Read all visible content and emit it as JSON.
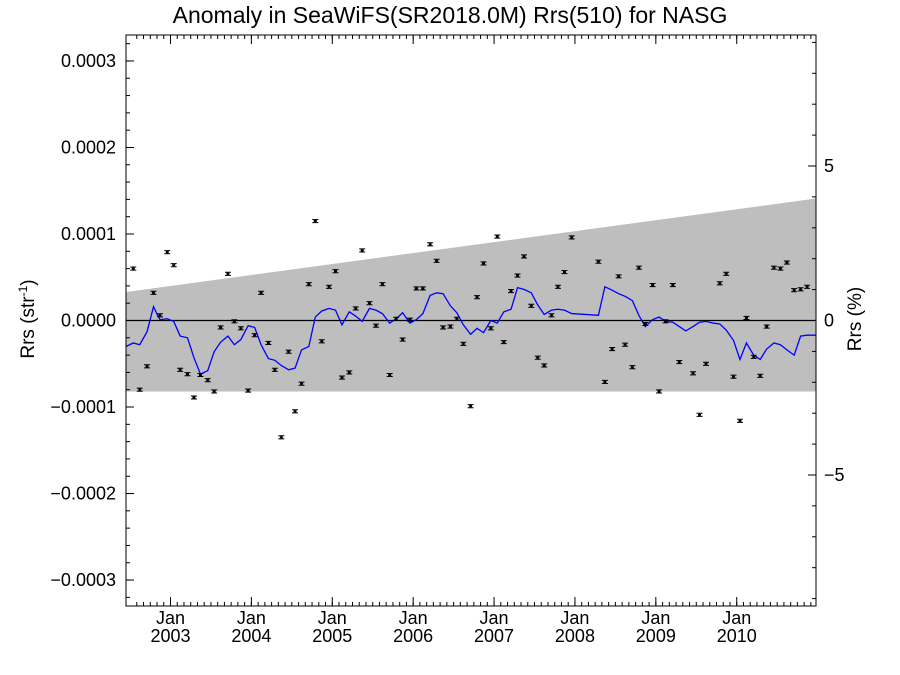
{
  "chart_data": {
    "type": "line",
    "title": "Anomaly in SeaWiFS(SR2018.0M) Rrs(510) for NASG",
    "ylabel": "Rrs (str",
    "ylabel_sup": "-1",
    "ylabel_close": ")",
    "y2label": "Rrs (%)",
    "ylim": [
      -0.00033,
      0.00033
    ],
    "y2lim": [
      -9.24,
      9.24
    ],
    "xlim": [
      2002.45,
      2010.98
    ],
    "yticks": [
      -0.0003,
      -0.0002,
      -0.0001,
      0.0,
      0.0001,
      0.0002,
      0.0003
    ],
    "ytick_labels": [
      "−0.0003",
      "−0.0002",
      "−0.0001",
      "0.0000",
      "0.0001",
      "0.0002",
      "0.0003"
    ],
    "y2ticks": [
      -5,
      0,
      5
    ],
    "y2tick_labels": [
      "−5",
      "0",
      "5"
    ],
    "xticks": [
      2003.0,
      2004.0,
      2005.0,
      2006.0,
      2007.0,
      2008.0,
      2009.0,
      2010.0
    ],
    "xtick_labels_top": [
      "Jan",
      "Jan",
      "Jan",
      "Jan",
      "Jan",
      "Jan",
      "Jan",
      "Jan"
    ],
    "xtick_labels_bottom": [
      "2003",
      "2004",
      "2005",
      "2006",
      "2007",
      "2008",
      "2009",
      "2010"
    ],
    "band": {
      "x": [
        2002.45,
        2010.98
      ],
      "upper": [
        3.3e-05,
        0.000141
      ],
      "lower": [
        -8.2e-05,
        -8.2e-05
      ],
      "color": "#bebebe"
    },
    "zero_line": 0.0,
    "series": [
      {
        "kind": "points_with_errorbars",
        "color": "#000000",
        "x": [
          2002.54,
          2002.62,
          2002.71,
          2002.79,
          2002.87,
          2002.96,
          2003.04,
          2003.12,
          2003.21,
          2003.29,
          2003.37,
          2003.46,
          2003.54,
          2003.62,
          2003.71,
          2003.79,
          2003.87,
          2003.96,
          2004.04,
          2004.12,
          2004.21,
          2004.29,
          2004.37,
          2004.46,
          2004.54,
          2004.62,
          2004.71,
          2004.79,
          2004.87,
          2004.96,
          2005.04,
          2005.12,
          2005.21,
          2005.29,
          2005.37,
          2005.46,
          2005.54,
          2005.62,
          2005.71,
          2005.79,
          2005.87,
          2005.96,
          2006.04,
          2006.12,
          2006.21,
          2006.29,
          2006.37,
          2006.46,
          2006.54,
          2006.62,
          2006.71,
          2006.79,
          2006.87,
          2006.96,
          2007.04,
          2007.12,
          2007.21,
          2007.29,
          2007.37,
          2007.46,
          2007.54,
          2007.62,
          2007.71,
          2007.79,
          2007.87,
          2007.96,
          2008.29,
          2008.37,
          2008.46,
          2008.54,
          2008.62,
          2008.71,
          2008.79,
          2008.87,
          2008.96,
          2009.04,
          2009.12,
          2009.21,
          2009.29,
          2009.46,
          2009.54,
          2009.62,
          2009.79,
          2009.87,
          2009.96,
          2010.04,
          2010.12,
          2010.21,
          2010.29,
          2010.37,
          2010.46,
          2010.54,
          2010.62,
          2010.71,
          2010.79,
          2010.87
        ],
        "y": [
          6e-05,
          -8e-05,
          -5.3e-05,
          3.2e-05,
          6e-06,
          7.9e-05,
          6.4e-05,
          -5.7e-05,
          -6.2e-05,
          -8.9e-05,
          -6.3e-05,
          -6.9e-05,
          -8.2e-05,
          -8e-06,
          5.4e-05,
          -1e-06,
          -9e-06,
          -8.1e-05,
          -1.7e-05,
          3.2e-05,
          -2.6e-05,
          -5.7e-05,
          -0.000135,
          -3.6e-05,
          -0.000105,
          -7.3e-05,
          4.2e-05,
          0.000115,
          -2.4e-05,
          3.9e-05,
          5.7e-05,
          -6.6e-05,
          -6e-05,
          1.4e-05,
          8.1e-05,
          2e-05,
          -6e-06,
          4.2e-05,
          -6.3e-05,
          2e-06,
          -2.2e-05,
          1e-06,
          3.7e-05,
          3.7e-05,
          8.8e-05,
          6.9e-05,
          -8e-06,
          -7e-06,
          2e-06,
          -2.7e-05,
          -9.9e-05,
          2.7e-05,
          6.6e-05,
          -9e-06,
          9.7e-05,
          -2.5e-05,
          3.4e-05,
          5.2e-05,
          7.4e-05,
          1.7e-05,
          -4.3e-05,
          -5.2e-05,
          6e-06,
          3.9e-05,
          5.6e-05,
          9.6e-05,
          6.8e-05,
          -7.1e-05,
          -3.3e-05,
          5.1e-05,
          -2.8e-05,
          -5.4e-05,
          6.1e-05,
          -4e-06,
          4.1e-05,
          -8.2e-05,
          -1e-06,
          4.1e-05,
          -4.8e-05,
          -6.1e-05,
          -0.000109,
          -5e-05,
          4.3e-05,
          5.4e-05,
          -6.5e-05,
          -0.000116,
          3e-06,
          -4.2e-05,
          -6.4e-05,
          -7e-06,
          6.1e-05,
          6e-05,
          6.7e-05,
          3.5e-05,
          3.6e-05,
          3.9e-05
        ],
        "yerr": 1.8e-06
      },
      {
        "kind": "line",
        "color": "#0000ff",
        "x": [
          2002.45,
          2002.54,
          2002.62,
          2002.71,
          2002.79,
          2002.83,
          2002.87,
          2002.96,
          2003.04,
          2003.12,
          2003.21,
          2003.29,
          2003.37,
          2003.46,
          2003.54,
          2003.62,
          2003.71,
          2003.79,
          2003.87,
          2003.96,
          2004.04,
          2004.12,
          2004.21,
          2004.29,
          2004.37,
          2004.46,
          2004.54,
          2004.62,
          2004.71,
          2004.79,
          2004.87,
          2004.96,
          2005.04,
          2005.12,
          2005.21,
          2005.29,
          2005.37,
          2005.46,
          2005.54,
          2005.62,
          2005.71,
          2005.79,
          2005.87,
          2005.96,
          2006.04,
          2006.12,
          2006.21,
          2006.29,
          2006.37,
          2006.46,
          2006.54,
          2006.62,
          2006.71,
          2006.79,
          2006.87,
          2006.96,
          2007.04,
          2007.12,
          2007.21,
          2007.29,
          2007.37,
          2007.46,
          2007.54,
          2007.62,
          2007.71,
          2007.79,
          2007.87,
          2007.96,
          2008.29,
          2008.37,
          2008.46,
          2008.54,
          2008.62,
          2008.71,
          2008.79,
          2008.87,
          2008.96,
          2009.04,
          2009.12,
          2009.21,
          2009.29,
          2009.37,
          2009.46,
          2009.54,
          2009.62,
          2009.71,
          2009.79,
          2009.87,
          2009.96,
          2010.04,
          2010.12,
          2010.21,
          2010.29,
          2010.37,
          2010.46,
          2010.54,
          2010.62,
          2010.71,
          2010.79,
          2010.87,
          2010.98
        ],
        "y": [
          -3e-05,
          -2.6e-05,
          -2.8e-05,
          -1.3e-05,
          1.6e-05,
          8e-06,
          1e-06,
          2e-06,
          -1e-06,
          -1.8e-05,
          -2e-05,
          -4.3e-05,
          -6.2e-05,
          -5.8e-05,
          -3.6e-05,
          -2.5e-05,
          -1.8e-05,
          -2.8e-05,
          -2.2e-05,
          -6e-06,
          -8e-06,
          -2.8e-05,
          -4.4e-05,
          -4.6e-05,
          -5.2e-05,
          -5.7e-05,
          -5.5e-05,
          -3.4e-05,
          -3e-05,
          4e-06,
          1.1e-05,
          1.4e-05,
          1.2e-05,
          -5e-06,
          1e-05,
          5e-06,
          -1e-06,
          1.4e-05,
          1.2e-05,
          8e-06,
          -3e-06,
          2e-06,
          9e-06,
          -3e-06,
          1e-06,
          8e-06,
          2.9e-05,
          3.2e-05,
          3.1e-05,
          1.7e-05,
          9e-06,
          -5e-06,
          -1.6e-05,
          -9e-06,
          -1.4e-05,
          0.0,
          -3e-06,
          1e-05,
          1.3e-05,
          3.8e-05,
          3.6e-05,
          3.2e-05,
          1.8e-05,
          7e-06,
          1.2e-05,
          1.3e-05,
          1.2e-05,
          8e-06,
          6e-06,
          3.9e-05,
          3.5e-05,
          3.1e-05,
          2.8e-05,
          2.3e-05,
          6e-06,
          -7e-06,
          1e-06,
          4e-06,
          -1e-06,
          -2e-06,
          -7e-06,
          -1.2e-05,
          -7e-06,
          -2e-06,
          -1e-06,
          -3e-06,
          -4e-06,
          -1.1e-05,
          -2.3e-05,
          -4.5e-05,
          -2.6e-05,
          -4e-05,
          -4.5e-05,
          -3.3e-05,
          -2.6e-05,
          -2.8e-05,
          -3.4e-05,
          -4e-05,
          -1.8e-05,
          -1.7e-05,
          -1.7e-05
        ]
      }
    ]
  }
}
